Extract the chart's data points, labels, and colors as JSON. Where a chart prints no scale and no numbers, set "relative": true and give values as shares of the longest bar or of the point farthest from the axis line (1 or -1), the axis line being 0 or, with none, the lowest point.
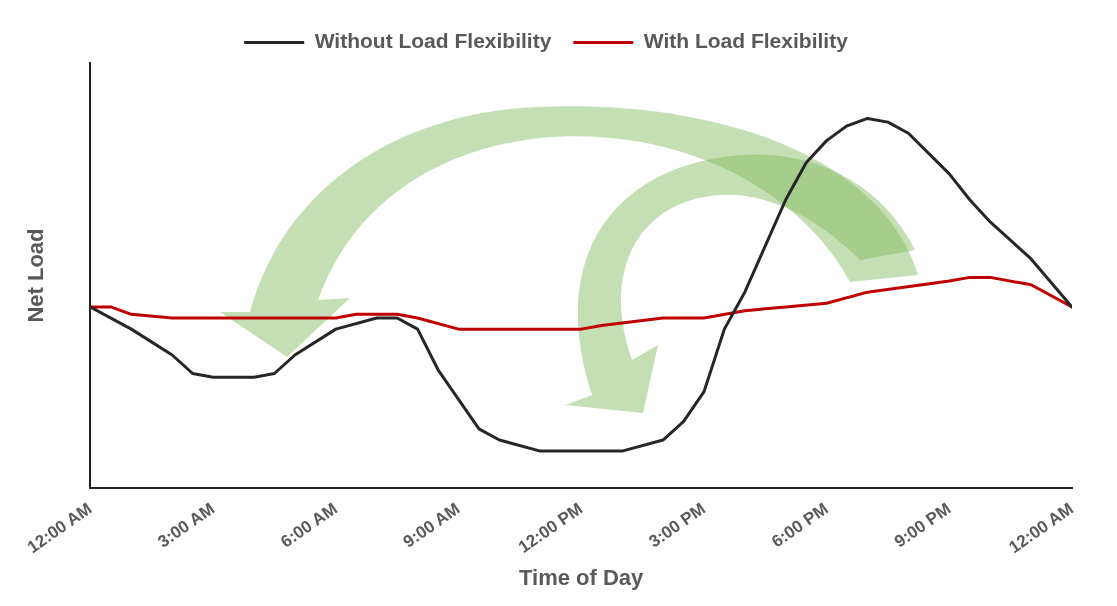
{
  "chart_data": {
    "type": "line",
    "relative": true,
    "xlabel": "Time of Day",
    "ylabel": "Net Load",
    "legend": "top",
    "grid": false,
    "marker": "none",
    "line_style": "solid",
    "xlim": [
      0,
      24
    ],
    "xticks": [
      {
        "value": 0,
        "label": "12:00 AM"
      },
      {
        "value": 3,
        "label": "3:00 AM"
      },
      {
        "value": 6,
        "label": "6:00 AM"
      },
      {
        "value": 9,
        "label": "9:00 AM"
      },
      {
        "value": 12,
        "label": "12:00 PM"
      },
      {
        "value": 15,
        "label": "3:00 PM"
      },
      {
        "value": 18,
        "label": "6:00 PM"
      },
      {
        "value": 21,
        "label": "9:00 PM"
      },
      {
        "value": 24,
        "label": "12:00 AM"
      }
    ],
    "series": [
      {
        "name": "Without Load Flexibility",
        "color": "#262626",
        "x": [
          0,
          1,
          2,
          2.5,
          3,
          4,
          4.5,
          5,
          6,
          7,
          7.5,
          8,
          8.5,
          9.5,
          10,
          11,
          12,
          13,
          14,
          14.5,
          15,
          15.5,
          16,
          17,
          17.5,
          18,
          18.5,
          19,
          19.5,
          20,
          21,
          21.5,
          22,
          23,
          24
        ],
        "values": [
          0.49,
          0.43,
          0.36,
          0.31,
          0.3,
          0.3,
          0.31,
          0.36,
          0.43,
          0.46,
          0.46,
          0.43,
          0.32,
          0.16,
          0.13,
          0.1,
          0.1,
          0.1,
          0.13,
          0.18,
          0.26,
          0.43,
          0.53,
          0.78,
          0.88,
          0.94,
          0.98,
          1,
          0.99,
          0.96,
          0.85,
          0.78,
          0.72,
          0.62,
          0.49
        ]
      },
      {
        "name": "With Load Flexibility",
        "color": "#c00000",
        "x": [
          0,
          0.5,
          1,
          2,
          3,
          4,
          5,
          6,
          6.5,
          7.5,
          8,
          9,
          11,
          12,
          12.5,
          14,
          15,
          16,
          17,
          18,
          19,
          21,
          21.5,
          22,
          23,
          24
        ],
        "values": [
          0.49,
          0.49,
          0.47,
          0.46,
          0.46,
          0.46,
          0.46,
          0.46,
          0.47,
          0.47,
          0.46,
          0.43,
          0.43,
          0.43,
          0.44,
          0.46,
          0.46,
          0.48,
          0.49,
          0.5,
          0.53,
          0.56,
          0.57,
          0.57,
          0.55,
          0.49
        ]
      }
    ]
  }
}
